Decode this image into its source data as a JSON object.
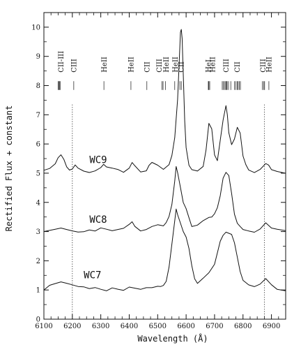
{
  "chart_data": {
    "type": "line",
    "xlabel": "Wavelength (Å)",
    "ylabel": "Rectified Flux + constant",
    "xlim": [
      6100,
      6950
    ],
    "ylim": [
      0,
      10.5
    ],
    "x_ticks": [
      "6100",
      "6200",
      "6300",
      "6400",
      "6500",
      "6600",
      "6700",
      "6800",
      "6900"
    ],
    "y_ticks": [
      "0",
      "1",
      "2",
      "3",
      "4",
      "5",
      "6",
      "7",
      "8",
      "9",
      "10"
    ],
    "minor_ticks": true,
    "grid": false,
    "legend": "none",
    "colors": {
      "line": "#111111",
      "axis": "#111111",
      "background": "#ffffff"
    },
    "reference_lines": [
      {
        "x": 6200,
        "style": "dotted"
      },
      {
        "x": 6875,
        "style": "dotted"
      }
    ],
    "line_ids": [
      {
        "label": "CII-III",
        "label_x": 6160,
        "marks": [
          6150,
          6152,
          6155,
          6157
        ]
      },
      {
        "label": "CIII",
        "label_x": 6205,
        "marks": [
          6205
        ]
      },
      {
        "label": "HeII",
        "label_x": 6312,
        "marks": [
          6311
        ]
      },
      {
        "label": "HeII",
        "label_x": 6406,
        "marks": [
          6406
        ]
      },
      {
        "label": "CII",
        "label_x": 6462,
        "marks": [
          6462
        ]
      },
      {
        "label": "CIII",
        "label_x": 6505,
        "marks": [
          6515,
          6519
        ]
      },
      {
        "label": "HeII",
        "label_x": 6530,
        "marks": [
          6527
        ]
      },
      {
        "label": "HeII",
        "label_x": 6562,
        "marks": [
          6560
        ]
      },
      {
        "label": "CII",
        "label_x": 6583,
        "marks": [
          6578,
          6583
        ]
      },
      {
        "label": "HeI",
        "label_x": 6678,
        "marks": [
          6678,
          6680
        ]
      },
      {
        "label": "HeII",
        "label_x": 6693,
        "marks": [
          6683
        ]
      },
      {
        "label": "CIII",
        "label_x": 6740,
        "marks": [
          6727,
          6731,
          6735,
          6739,
          6742,
          6744,
          6749,
          6757
        ]
      },
      {
        "label": "CII",
        "label_x": 6780,
        "marks": [
          6770,
          6775,
          6780,
          6783,
          6787,
          6791
        ]
      },
      {
        "label": "CIII",
        "label_x": 6871,
        "marks": [
          6868,
          6873,
          6876
        ]
      },
      {
        "label": "HeII",
        "label_x": 6891,
        "marks": [
          6891
        ]
      }
    ],
    "series": [
      {
        "name": "WC9",
        "x": [
          6100,
          6120,
          6140,
          6150,
          6160,
          6170,
          6180,
          6190,
          6200,
          6210,
          6220,
          6240,
          6260,
          6280,
          6300,
          6310,
          6320,
          6340,
          6360,
          6380,
          6400,
          6410,
          6420,
          6440,
          6460,
          6470,
          6480,
          6500,
          6520,
          6540,
          6550,
          6560,
          6570,
          6575,
          6580,
          6583,
          6586,
          6590,
          6595,
          6600,
          6610,
          6620,
          6640,
          6660,
          6670,
          6680,
          6690,
          6700,
          6710,
          6720,
          6730,
          6740,
          6745,
          6750,
          6760,
          6770,
          6780,
          6790,
          6800,
          6810,
          6820,
          6840,
          6860,
          6880,
          6890,
          6900,
          6920,
          6950
        ],
        "y": [
          5.1,
          5.15,
          5.3,
          5.5,
          5.6,
          5.45,
          5.2,
          5.1,
          5.15,
          5.3,
          5.2,
          5.1,
          5.05,
          5.1,
          5.2,
          5.3,
          5.2,
          5.15,
          5.1,
          5.0,
          5.15,
          5.35,
          5.25,
          5.05,
          5.1,
          5.3,
          5.4,
          5.3,
          5.15,
          5.3,
          5.6,
          6.2,
          7.5,
          8.6,
          9.8,
          9.9,
          9.6,
          8.4,
          6.8,
          5.9,
          5.3,
          5.15,
          5.1,
          5.25,
          5.8,
          6.7,
          6.5,
          5.6,
          5.4,
          6.1,
          6.8,
          7.3,
          7.0,
          6.4,
          6.0,
          6.2,
          6.6,
          6.4,
          5.6,
          5.3,
          5.1,
          5.0,
          5.1,
          5.3,
          5.25,
          5.1,
          5.05,
          5.0
        ],
        "label_text": "WC9",
        "label_pos": [
          6260,
          5.35
        ]
      },
      {
        "name": "WC8",
        "x": [
          6100,
          6120,
          6140,
          6160,
          6180,
          6200,
          6220,
          6240,
          6260,
          6280,
          6300,
          6320,
          6340,
          6360,
          6380,
          6400,
          6410,
          6420,
          6440,
          6460,
          6480,
          6500,
          6520,
          6530,
          6540,
          6550,
          6560,
          6565,
          6570,
          6580,
          6590,
          6600,
          6610,
          6620,
          6640,
          6660,
          6680,
          6690,
          6700,
          6710,
          6720,
          6730,
          6740,
          6750,
          6760,
          6770,
          6780,
          6790,
          6800,
          6820,
          6840,
          6860,
          6880,
          6890,
          6900,
          6920,
          6950
        ],
        "y": [
          3.0,
          3.05,
          3.1,
          3.15,
          3.1,
          3.05,
          3.0,
          3.0,
          3.05,
          3.0,
          3.1,
          3.05,
          3.0,
          3.05,
          3.1,
          3.25,
          3.35,
          3.2,
          3.05,
          3.1,
          3.2,
          3.25,
          3.2,
          3.3,
          3.5,
          3.9,
          4.7,
          5.2,
          5.0,
          4.5,
          4.0,
          3.8,
          3.5,
          3.2,
          3.25,
          3.4,
          3.5,
          3.5,
          3.6,
          3.8,
          4.2,
          4.8,
          5.0,
          4.9,
          4.3,
          3.6,
          3.3,
          3.2,
          3.1,
          3.05,
          3.0,
          3.1,
          3.3,
          3.2,
          3.1,
          3.05,
          3.0
        ],
        "label_text": "WC8",
        "label_pos": [
          6260,
          3.3
        ]
      },
      {
        "name": "WC7",
        "x": [
          6100,
          6120,
          6140,
          6160,
          6180,
          6200,
          6220,
          6240,
          6260,
          6280,
          6300,
          6320,
          6340,
          6360,
          6380,
          6400,
          6420,
          6440,
          6460,
          6480,
          6500,
          6510,
          6520,
          6530,
          6540,
          6550,
          6560,
          6565,
          6570,
          6580,
          6590,
          6600,
          6610,
          6620,
          6630,
          6640,
          6650,
          6660,
          6680,
          6700,
          6710,
          6720,
          6730,
          6740,
          6750,
          6760,
          6770,
          6780,
          6790,
          6800,
          6820,
          6840,
          6860,
          6880,
          6900,
          6920,
          6950
        ],
        "y": [
          1.0,
          1.15,
          1.2,
          1.25,
          1.2,
          1.15,
          1.1,
          1.1,
          1.05,
          1.1,
          1.05,
          1.0,
          1.1,
          1.05,
          1.0,
          1.1,
          1.05,
          1.0,
          1.05,
          1.05,
          1.1,
          1.1,
          1.15,
          1.3,
          1.8,
          2.6,
          3.4,
          3.8,
          3.6,
          3.3,
          3.0,
          2.8,
          2.4,
          1.8,
          1.35,
          1.2,
          1.3,
          1.4,
          1.6,
          1.9,
          2.3,
          2.7,
          2.9,
          3.0,
          2.95,
          2.9,
          2.6,
          2.1,
          1.6,
          1.3,
          1.15,
          1.1,
          1.2,
          1.4,
          1.2,
          1.05,
          1.0
        ],
        "label_text": "WC7",
        "label_pos": [
          6240,
          1.4
        ]
      }
    ]
  }
}
